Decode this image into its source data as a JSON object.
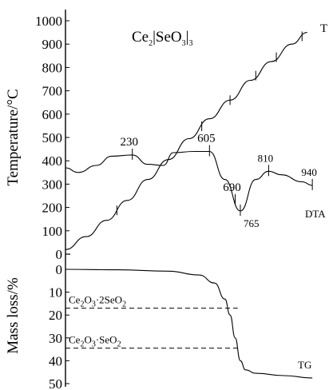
{
  "chart_data": [
    {
      "type": "line",
      "panel": "top",
      "title_parts": {
        "a": "Ce",
        "a_sub": "2",
        "b": "|SeO",
        "b_sub": "3",
        "c": "|",
        "c_sub": "3"
      },
      "ylabel": "Temperature/°C",
      "xlabel": "",
      "ylim": [
        0,
        1000
      ],
      "yticks": [
        "1000",
        "900",
        "800",
        "700",
        "600",
        "500",
        "400",
        "300",
        "200",
        "100",
        "0"
      ],
      "grid": false,
      "series": [
        {
          "name": "T",
          "x": [
            0,
            0.08,
            0.16,
            0.24,
            0.32,
            0.4,
            0.48,
            0.56,
            0.64,
            0.72,
            0.8,
            0.88,
            0.94
          ],
          "values": [
            20,
            75,
            145,
            230,
            320,
            405,
            495,
            580,
            660,
            745,
            825,
            900,
            950
          ]
        },
        {
          "name": "DTA",
          "x": [
            0,
            0.05,
            0.12,
            0.18,
            0.26,
            0.32,
            0.38,
            0.42,
            0.5,
            0.56,
            0.62,
            0.68,
            0.74,
            0.79,
            0.84,
            0.92,
            0.96
          ],
          "values": [
            370,
            350,
            380,
            420,
            425,
            385,
            380,
            435,
            440,
            440,
            320,
            185,
            320,
            355,
            340,
            310,
            295
          ],
          "marks": [
            {
              "x": 0.26,
              "label": "230"
            },
            {
              "x": 0.56,
              "label": "605"
            },
            {
              "x": 0.66,
              "label": "690"
            },
            {
              "x": 0.68,
              "label": "765"
            },
            {
              "x": 0.79,
              "label": "810"
            },
            {
              "x": 0.96,
              "label": "940"
            }
          ],
          "tag": "DTA"
        }
      ],
      "t_tick_positions": [
        0.2,
        0.53,
        0.64,
        0.74,
        0.82,
        0.92
      ],
      "curve_tag": "T"
    },
    {
      "type": "line",
      "panel": "bottom",
      "ylabel": "Mass loss/%",
      "xlabel": "",
      "ylim": [
        0,
        50
      ],
      "yticks": [
        "0",
        "10",
        "20",
        "30",
        "40",
        "50"
      ],
      "inverted_y": true,
      "grid": false,
      "series": [
        {
          "name": "TG",
          "x": [
            0,
            0.2,
            0.4,
            0.52,
            0.58,
            0.62,
            0.64,
            0.66,
            0.68,
            0.7,
            0.74,
            0.85,
            0.96
          ],
          "values": [
            0,
            0.2,
            0.8,
            2.5,
            6,
            13,
            20,
            30,
            40,
            44,
            45.5,
            46.5,
            47.5
          ],
          "tag": "TG"
        }
      ],
      "reference_lines": [
        {
          "value": 17,
          "label_parts": {
            "a": "Ce",
            "a_sub": "2",
            "b": "O",
            "b_sub": "3",
            "c": "·2SeO",
            "c_sub": "2"
          }
        },
        {
          "value": 34.5,
          "label_parts": {
            "a": "Ce",
            "a_sub": "2",
            "b": "O",
            "b_sub": "3",
            "c": "·SeO",
            "c_sub": "2"
          }
        }
      ]
    }
  ]
}
